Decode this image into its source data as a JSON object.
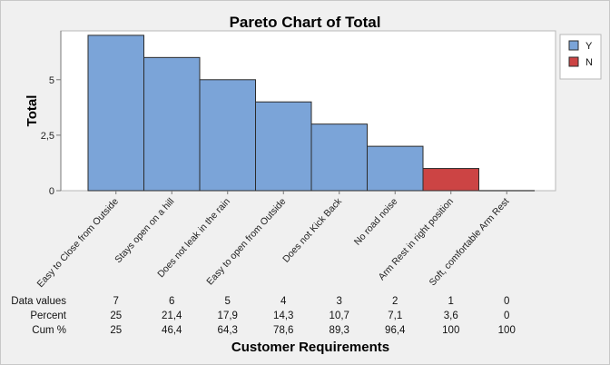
{
  "chart_data": {
    "type": "bar",
    "title": "Pareto Chart of Total",
    "xlabel": "Customer Requirements",
    "ylabel": "Total",
    "ylim": [
      0,
      7.2
    ],
    "yticks": [
      0,
      2.5,
      5
    ],
    "ytick_labels": [
      "0",
      "2,5",
      "5"
    ],
    "categories": [
      "Easy to Close from Outside",
      "Stays open on a hill",
      "Does not leak in the rain",
      "Easy to open from Outside",
      "Does not Kick Back",
      "No road noise",
      "Arm Rest in right position",
      "Soft, comfortable Arm Rest"
    ],
    "values": [
      7,
      6,
      5,
      4,
      3,
      2,
      1,
      0
    ],
    "groups": [
      "Y",
      "Y",
      "Y",
      "Y",
      "Y",
      "Y",
      "N",
      "N"
    ],
    "legend": {
      "position": "right",
      "entries": [
        {
          "label": "Y",
          "color": "#7ba4d8"
        },
        {
          "label": "N",
          "color": "#cc4444"
        }
      ]
    },
    "table": {
      "rows": [
        {
          "label": "Data values",
          "values": [
            "7",
            "6",
            "5",
            "4",
            "3",
            "2",
            "1",
            "0"
          ]
        },
        {
          "label": "Percent",
          "values": [
            "25",
            "21,4",
            "17,9",
            "14,3",
            "10,7",
            "7,1",
            "3,6",
            "0"
          ]
        },
        {
          "label": "Cum %",
          "values": [
            "25",
            "46,4",
            "64,3",
            "78,6",
            "89,3",
            "96,4",
            "100",
            "100"
          ]
        }
      ]
    },
    "grid": false
  }
}
